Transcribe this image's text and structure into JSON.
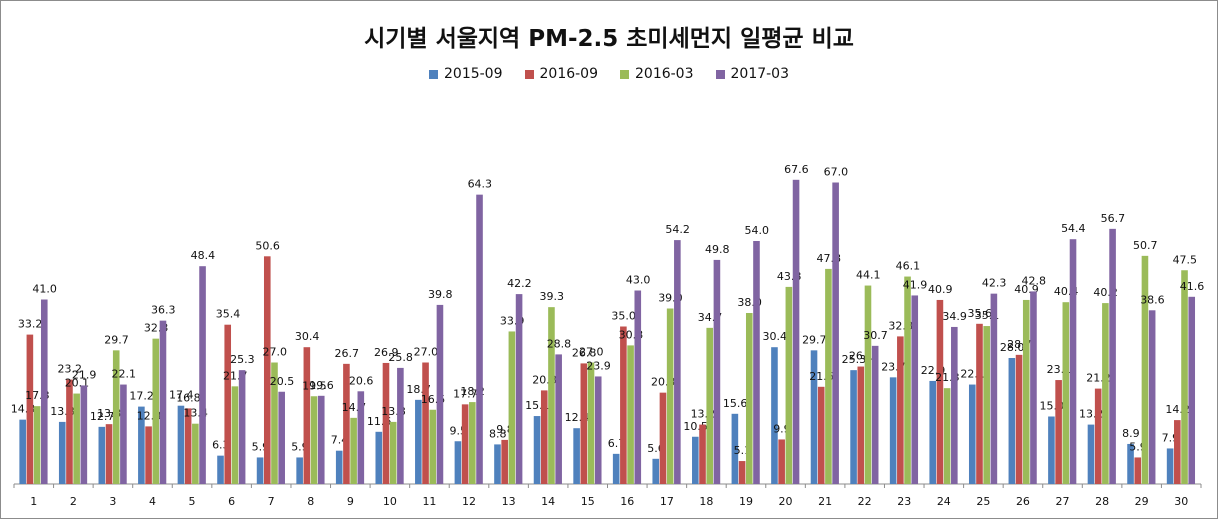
{
  "chart_data": {
    "type": "bar",
    "title": "시기별 서울지역 PM-2.5 초미세먼지 일평균 비교",
    "categories": [
      "1",
      "2",
      "3",
      "4",
      "5",
      "6",
      "7",
      "8",
      "9",
      "10",
      "11",
      "12",
      "13",
      "14",
      "15",
      "16",
      "17",
      "18",
      "19",
      "20",
      "21",
      "22",
      "23",
      "24",
      "25",
      "26",
      "27",
      "28",
      "29",
      "30"
    ],
    "series": [
      {
        "name": "2015-09",
        "color": "#4f81bd",
        "values": [
          14.3,
          13.8,
          12.7,
          17.2,
          17.4,
          6.3,
          5.9,
          5.9,
          7.4,
          11.6,
          18.7,
          9.5,
          8.8,
          15.1,
          12.4,
          6.7,
          5.6,
          10.5,
          15.6,
          30.4,
          29.7,
          25.3,
          23.7,
          22.9,
          22.1,
          28.0,
          15.0,
          13.2,
          8.9,
          7.9
        ]
      },
      {
        "name": "2016-09",
        "color": "#c0504d",
        "values": [
          33.2,
          23.2,
          13.3,
          12.8,
          16.8,
          35.4,
          50.6,
          30.4,
          26.7,
          26.9,
          27.0,
          17.7,
          9.8,
          20.8,
          26.8,
          35.0,
          20.3,
          13.2,
          5.1,
          9.9,
          21.6,
          26.1,
          32.8,
          40.9,
          35.6,
          28.7,
          23.1,
          21.2,
          5.9,
          14.2
        ]
      },
      {
        "name": "2016-03",
        "color": "#9bbb59",
        "values": [
          17.3,
          20.1,
          29.7,
          32.3,
          13.4,
          21.7,
          27.0,
          19.5,
          14.7,
          13.8,
          16.5,
          18.2,
          33.9,
          39.3,
          27.0,
          30.8,
          39.0,
          34.7,
          38.0,
          43.8,
          47.8,
          44.1,
          46.1,
          21.3,
          35.1,
          40.9,
          40.4,
          40.2,
          50.7,
          47.5
        ]
      },
      {
        "name": "2017-03",
        "color": "#8064a2",
        "values": [
          41.0,
          21.9,
          22.1,
          36.3,
          48.4,
          25.3,
          20.5,
          19.6,
          20.6,
          25.8,
          39.8,
          64.3,
          42.2,
          28.8,
          23.9,
          43.0,
          54.2,
          49.8,
          54.0,
          67.6,
          67.0,
          30.7,
          41.9,
          34.9,
          42.3,
          42.8,
          54.4,
          56.7,
          38.6,
          41.6
        ]
      }
    ],
    "ylim": [
      0,
      75
    ],
    "grid": false,
    "legend": "top"
  }
}
